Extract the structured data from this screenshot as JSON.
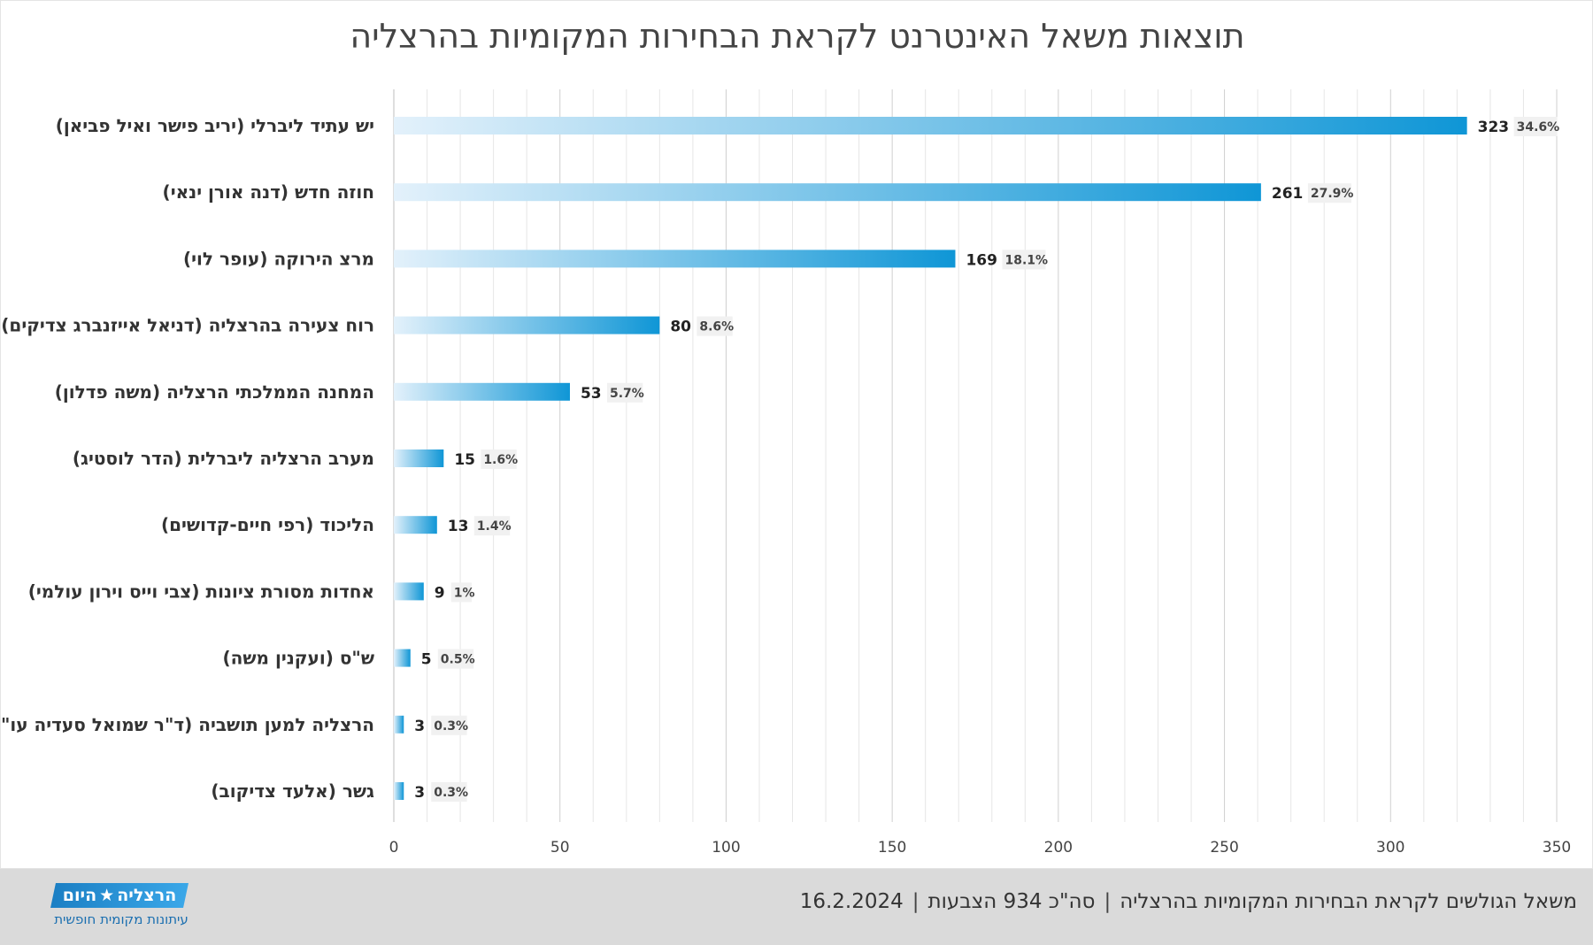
{
  "chart_data": {
    "type": "bar",
    "orientation": "horizontal",
    "title": "תוצאות משאל האינטרנט לקראת הבחירות המקומיות בהרצליה",
    "categories": [
      "יש עתיד ליברלי (יריב פישר ואיל פביאן)",
      "חוזה חדש (דנה אורן ינאי)",
      "מרצ הירוקה (עופר לוי)",
      "רוח צעירה בהרצליה (דניאל אייזנברג צדיקים)",
      "המחנה הממלכתי הרצליה (משה פדלון)",
      "מערב הרצליה ליברלית (הדר לוסטיג)",
      "הליכוד (רפי חיים-קדושים)",
      "אחדות מסורת ציונות (צבי וייס וירון עולמי)",
      "ש\"ס (ועקנין משה)",
      "הרצליה למען תושביה (ד\"ר שמואל סעדיה עו\"ד)",
      "גשר (אלעד צדיקוב)"
    ],
    "values": [
      323,
      261,
      169,
      80,
      53,
      15,
      13,
      9,
      5,
      3,
      3
    ],
    "percent_labels": [
      "34.6%",
      "27.9%",
      "18.1%",
      "8.6%",
      "5.7%",
      "1.6%",
      "1.4%",
      "1%",
      "0.5%",
      "0.3%",
      "0.3%"
    ],
    "xlim": [
      0,
      350
    ],
    "x_ticks": [
      0,
      50,
      100,
      150,
      200,
      250,
      300,
      350
    ],
    "xlabel": "",
    "ylabel": "",
    "grid": true,
    "legend": "none",
    "bar_gradient": [
      "#e3f1fb",
      "#0f96d6"
    ]
  },
  "footer": {
    "date": "16.2.2024",
    "separator": "|",
    "caption": "משאל הגולשים לקראת הבחירות המקומיות בהרצליה",
    "total_votes": "סה\"כ 934 הצבעות"
  },
  "logo": {
    "name_part1": "הרצליה",
    "name_part2": "היום",
    "star_icon": "star-icon",
    "tagline": "עיתונות מקומית חופשית",
    "color": "#1b7fc4"
  }
}
